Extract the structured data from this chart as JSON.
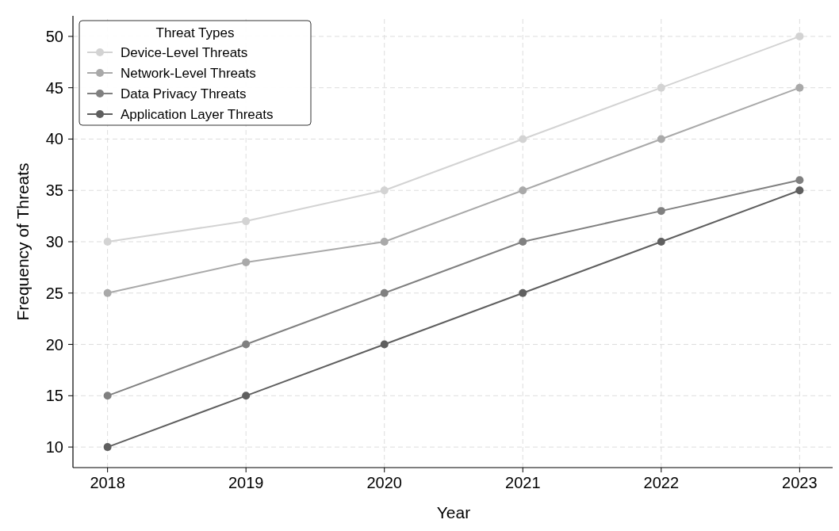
{
  "chart_data": {
    "type": "line",
    "xlabel": "Year",
    "ylabel": "Frequency of Threats",
    "legend_title": "Threat Types",
    "x": [
      2018,
      2019,
      2020,
      2021,
      2022,
      2023
    ],
    "series": [
      {
        "name": "Device-Level Threats",
        "color": "#d3d3d3",
        "values": [
          30,
          32,
          35,
          40,
          45,
          50
        ]
      },
      {
        "name": "Network-Level Threats",
        "color": "#a9a9a9",
        "values": [
          25,
          28,
          30,
          35,
          40,
          45
        ]
      },
      {
        "name": "Data Privacy Threats",
        "color": "#808080",
        "values": [
          15,
          20,
          25,
          30,
          33,
          36
        ]
      },
      {
        "name": "Application Layer Threats",
        "color": "#5f5f5f",
        "values": [
          10,
          15,
          20,
          25,
          30,
          35
        ]
      }
    ],
    "xlim": [
      2017.75,
      2023.25
    ],
    "xticks": [
      2018,
      2019,
      2020,
      2021,
      2022,
      2023
    ],
    "ylim": [
      8,
      52
    ],
    "yticks": [
      10,
      15,
      20,
      25,
      30,
      35,
      40,
      45,
      50
    ],
    "grid": true,
    "legend": "top left",
    "marker": "circle",
    "line_style": "solid"
  }
}
